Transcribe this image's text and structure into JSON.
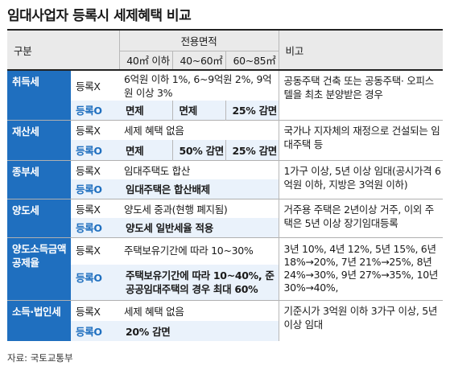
{
  "title": "임대사업자 등록시 세제혜택 비교",
  "header": {
    "category": "구분",
    "area": "전용면적",
    "note": "비고",
    "sub": [
      "40㎡ 이하",
      "40~60㎡",
      "60~85㎡"
    ]
  },
  "rows": [
    {
      "category": "취득세",
      "x_label": "등록X",
      "x_value": "6억원 이하 1%, 6~9억원 2%, 9억원 이상 3%",
      "o_label": "등록O",
      "o_cells": [
        "면제",
        "면제",
        "25% 감면"
      ],
      "note": "공동주택 건축 또는 공동주택· 오피스텔을 최초 분양받은 경우"
    },
    {
      "category": "재산세",
      "x_label": "등록X",
      "x_value": "세제 혜택 없음",
      "o_label": "등록O",
      "o_cells": [
        "면제",
        "50% 감면",
        "25% 감면"
      ],
      "note": "국가나 지자체의 재정으로 건설되는 임대주택 등"
    },
    {
      "category": "종부세",
      "x_label": "등록X",
      "x_value": "임대주택도 합산",
      "o_label": "등록O",
      "o_value": "임대주택은 합산배제",
      "note": "1가구 이상, 5년 이상 임대(공시가격 6억원 이하, 지방은 3억원 이하)"
    },
    {
      "category": "양도세",
      "x_label": "등록X",
      "x_value": "양도세 중과(현행 폐지됨)",
      "o_label": "등록O",
      "o_value": "양도세 일반세율 적용",
      "note": "거주용 주택은 2년이상 거주, 이외 주택은 5년 이상 장기임대등록"
    },
    {
      "category": "양도소득금액 공제율",
      "x_label": "등록X",
      "x_value": "주택보유기간에 따라 10~30%",
      "o_label": "등록O",
      "o_value": "주택보유기간에 따라 10~40%, 준공공임대주택의 경우 최대 60%",
      "note": "3년 10%, 4년 12%, 5년 15%, 6년 18%→20%, 7년 21%→25%, 8년 24%→30%, 9년 27%→35%, 10년 30%→40%,"
    },
    {
      "category": "소득·법인세",
      "x_label": "등록X",
      "x_value": "세제 혜택 없음",
      "o_label": "등록O",
      "o_value": "20% 감면",
      "note": "기준시가 3억원 이하 3가구 이상, 5년 이상 임대"
    }
  ],
  "source": "자료: 국토교통부",
  "colors": {
    "accent": "#1f6fbf",
    "tint": "#eaf2fb",
    "header_bg": "#eaeaea"
  }
}
